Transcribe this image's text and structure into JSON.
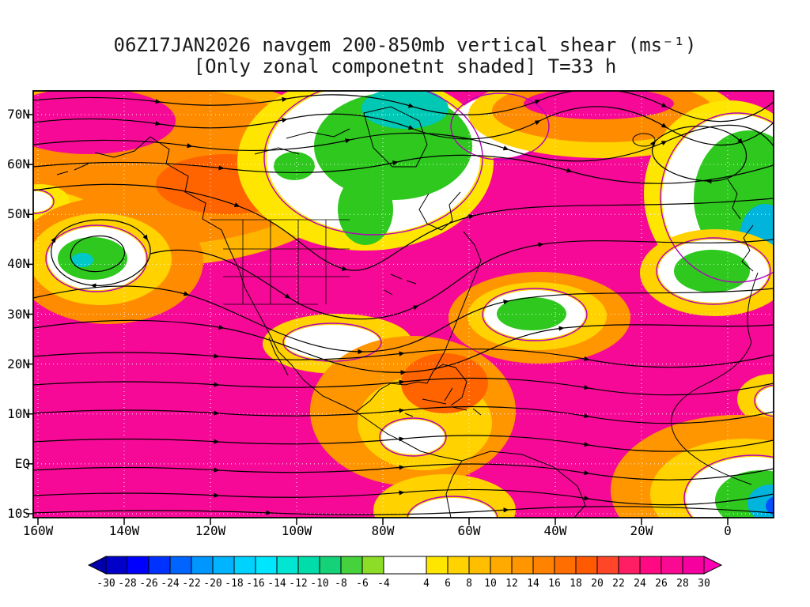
{
  "title": {
    "line1": "06Z17JAN2026 navgem 200-850mb vertical shear (ms⁻¹)",
    "line2": "[Only zonal componetnt shaded] T=33 h"
  },
  "axes": {
    "lat_labels": [
      "70N",
      "60N",
      "50N",
      "40N",
      "30N",
      "20N",
      "10N",
      "EQ",
      "10S"
    ],
    "lon_labels": [
      "160W",
      "140W",
      "120W",
      "100W",
      "80W",
      "60W",
      "40W",
      "20W",
      "0"
    ]
  },
  "colorbar": {
    "tick_labels": [
      "-30",
      "-28",
      "-26",
      "-24",
      "-22",
      "-20",
      "-18",
      "-16",
      "-14",
      "-12",
      "-10",
      "-8",
      "-6",
      "-4",
      "4",
      "6",
      "8",
      "10",
      "12",
      "14",
      "16",
      "18",
      "20",
      "22",
      "24",
      "26",
      "28",
      "30"
    ],
    "cell_colors": [
      "#0000c8",
      "#0000ff",
      "#0032ff",
      "#0064ff",
      "#0096ff",
      "#00b4ff",
      "#00d2ff",
      "#00e6ff",
      "#00e6d2",
      "#00dcaa",
      "#14d278",
      "#46d23c",
      "#8cdc28",
      "#ffffff",
      "#ffe600",
      "#ffd200",
      "#ffbe00",
      "#ffaa00",
      "#ff9600",
      "#ff8200",
      "#ff6e00",
      "#ff5a00",
      "#ff4628",
      "#ff1e64",
      "#ff0a82",
      "#fa0a92",
      "#f600a0"
    ],
    "wide_cell_index": 13,
    "arrow_left_color": "#0000aa",
    "arrow_right_color": "#ff00b4"
  },
  "chart_data": {
    "type": "heatmap",
    "title": "06Z17JAN2026 navgem 200-850mb vertical shear (ms⁻¹)",
    "subtitle": "[Only zonal componetnt shaded] T=33 h",
    "model": "navgem",
    "valid_time": "06Z17JAN2026",
    "forecast_hour": "T=33 h",
    "variable": "200-850mb vertical shear, zonal component shaded",
    "units": "ms⁻¹",
    "x": {
      "label": "longitude",
      "ticks": [
        "160W",
        "140W",
        "120W",
        "100W",
        "80W",
        "60W",
        "40W",
        "20W",
        "0"
      ]
    },
    "y": {
      "label": "latitude",
      "ticks": [
        "70N",
        "60N",
        "50N",
        "40N",
        "30N",
        "20N",
        "10N",
        "EQ",
        "10S"
      ]
    },
    "levels": [
      -30,
      -28,
      -26,
      -24,
      -22,
      -20,
      -18,
      -16,
      -14,
      -12,
      -10,
      -8,
      -6,
      -4,
      4,
      6,
      8,
      10,
      12,
      14,
      16,
      18,
      20,
      22,
      24,
      26,
      28,
      30
    ],
    "palette": [
      "#0000c8",
      "#0000ff",
      "#0032ff",
      "#0064ff",
      "#0096ff",
      "#00b4ff",
      "#00d2ff",
      "#00e6ff",
      "#00e6d2",
      "#00dcaa",
      "#14d278",
      "#46d23c",
      "#8cdc28",
      "#ffffff",
      "#ffe600",
      "#ffd200",
      "#ffbe00",
      "#ffaa00",
      "#ff9600",
      "#ff8200",
      "#ff6e00",
      "#ff5a00",
      "#ff4628",
      "#ff1e64",
      "#ff0a82",
      "#fa0a92",
      "#f600a0"
    ],
    "grid": true,
    "colorbar_position": "bottom",
    "overlays": [
      "black streamlines with arrowheads",
      "coastlines and US state borders",
      "purple contour bordering near-zero (white) shading",
      "white dotted latitude/longitude grid every 10° lat / 20° lon"
    ],
    "shaded_features": [
      "strong positive zonal shear (pink/magenta, >26 ms⁻¹) over most of the subtropical Pacific, Gulf of Mexico, subtropical Atlantic and northern South America/Africa band",
      "orange/yellow moderate positive shear band across Alaska and the northern Pacific rim and over Central America",
      "negative shear (green/cyan, -4 to -16 ms⁻¹) over Greenland and the far North Atlantic, the northeast Atlantic near Europe, a pocket near 42N 150W, a pocket near 30N 45W, and the eastern equatorial Atlantic",
      "near-zero band (white, -4 to 4 ms⁻¹) outlined in purple around each negative pocket",
      "closed cyclonic streamline circulation near 42N 150W and a trough in the streamlines over the central United States"
    ]
  }
}
